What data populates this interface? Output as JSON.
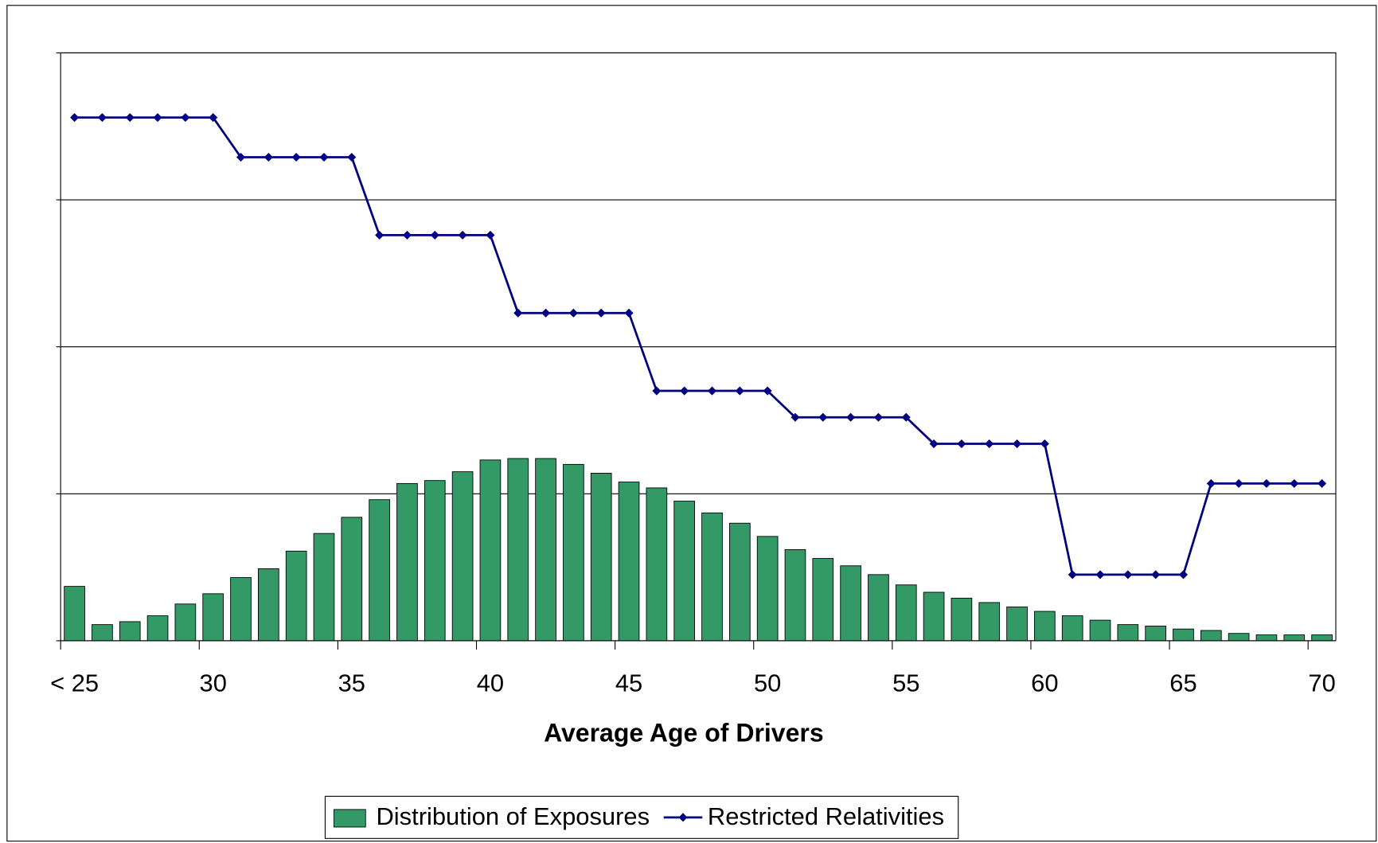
{
  "chart_data": {
    "type": "bar-line",
    "x_label": "Average Age of Drivers",
    "categories": [
      "< 25",
      null,
      null,
      null,
      null,
      "30",
      null,
      null,
      null,
      null,
      "35",
      null,
      null,
      null,
      null,
      "40",
      null,
      null,
      null,
      null,
      "45",
      null,
      null,
      null,
      null,
      "50",
      null,
      null,
      null,
      null,
      "55",
      null,
      null,
      null,
      null,
      "60",
      null,
      null,
      null,
      null,
      "65",
      null,
      null,
      null,
      null,
      "70"
    ],
    "series": [
      {
        "name": "Distribution of Exposures",
        "type": "bar",
        "color": "#339966",
        "values": [
          0.37,
          0.11,
          0.13,
          0.17,
          0.25,
          0.32,
          0.43,
          0.49,
          0.61,
          0.73,
          0.84,
          0.96,
          1.07,
          1.09,
          1.15,
          1.23,
          1.24,
          1.24,
          1.2,
          1.14,
          1.08,
          1.04,
          0.95,
          0.87,
          0.8,
          0.71,
          0.62,
          0.56,
          0.51,
          0.45,
          0.38,
          0.33,
          0.29,
          0.26,
          0.23,
          0.2,
          0.17,
          0.14,
          0.11,
          0.1,
          0.08,
          0.07,
          0.05,
          0.04,
          0.04,
          0.04
        ]
      },
      {
        "name": "Restricted Relativities",
        "type": "line",
        "color": "#000080",
        "values": [
          3.56,
          3.56,
          3.56,
          3.56,
          3.56,
          3.56,
          3.29,
          3.29,
          3.29,
          3.29,
          3.29,
          2.76,
          2.76,
          2.76,
          2.76,
          2.76,
          2.23,
          2.23,
          2.23,
          2.23,
          2.23,
          1.7,
          1.7,
          1.7,
          1.7,
          1.7,
          1.52,
          1.52,
          1.52,
          1.52,
          1.52,
          1.34,
          1.34,
          1.34,
          1.34,
          1.34,
          0.45,
          0.45,
          0.45,
          0.45,
          0.45,
          1.07,
          1.07,
          1.07,
          1.07,
          1.07
        ]
      }
    ],
    "ylim": [
      0,
      4
    ],
    "yticks": [
      0,
      1,
      2,
      3,
      4
    ],
    "grid": true,
    "legend": "bottom"
  }
}
